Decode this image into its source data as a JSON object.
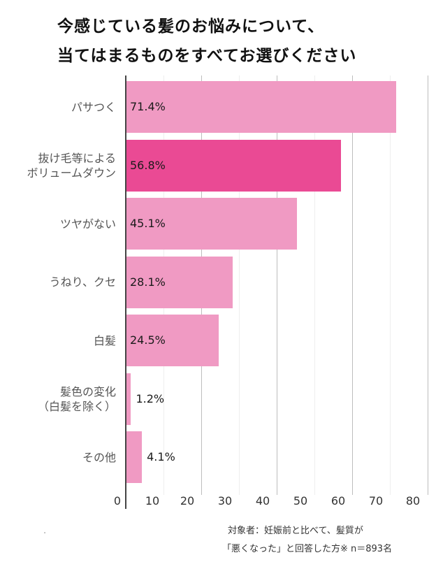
{
  "chart_data": {
    "type": "bar",
    "orientation": "horizontal",
    "title": "今感じている髪のお悩みについて、当てはまるものをすべてお選びください",
    "title_lines": [
      "今感じている髪のお悩みについて、",
      "当てはまるものをすべてお選びください"
    ],
    "categories": [
      [
        "パサつく"
      ],
      [
        "抜け毛等による",
        "ボリュームダウン"
      ],
      [
        "ツヤがない"
      ],
      [
        "うねり、クセ"
      ],
      [
        "白髪"
      ],
      [
        "髪色の変化",
        "（白髪を除く）"
      ],
      [
        "その他"
      ]
    ],
    "values": [
      71.4,
      56.8,
      45.1,
      28.1,
      24.5,
      1.2,
      4.1
    ],
    "value_labels": [
      "71.4%",
      "56.8%",
      "45.1%",
      "28.1%",
      "24.5%",
      "1.2%",
      "4.1%"
    ],
    "highlight_index": 1,
    "colors": {
      "bar": "#f09ac3",
      "highlight": "#ea4a94"
    },
    "xlabel": "",
    "ylabel": "",
    "xlim": [
      0,
      80
    ],
    "x_ticks": [
      "0",
      "10",
      "20",
      "30",
      "40",
      "50",
      "60",
      "70",
      "80"
    ],
    "grid": true,
    "legend": null
  },
  "footnote": {
    "line1": "対象者：妊娠前と比べて、髪質が",
    "line2": "「悪くなった」と回答した方※ n＝893名"
  },
  "stray_mark": "."
}
